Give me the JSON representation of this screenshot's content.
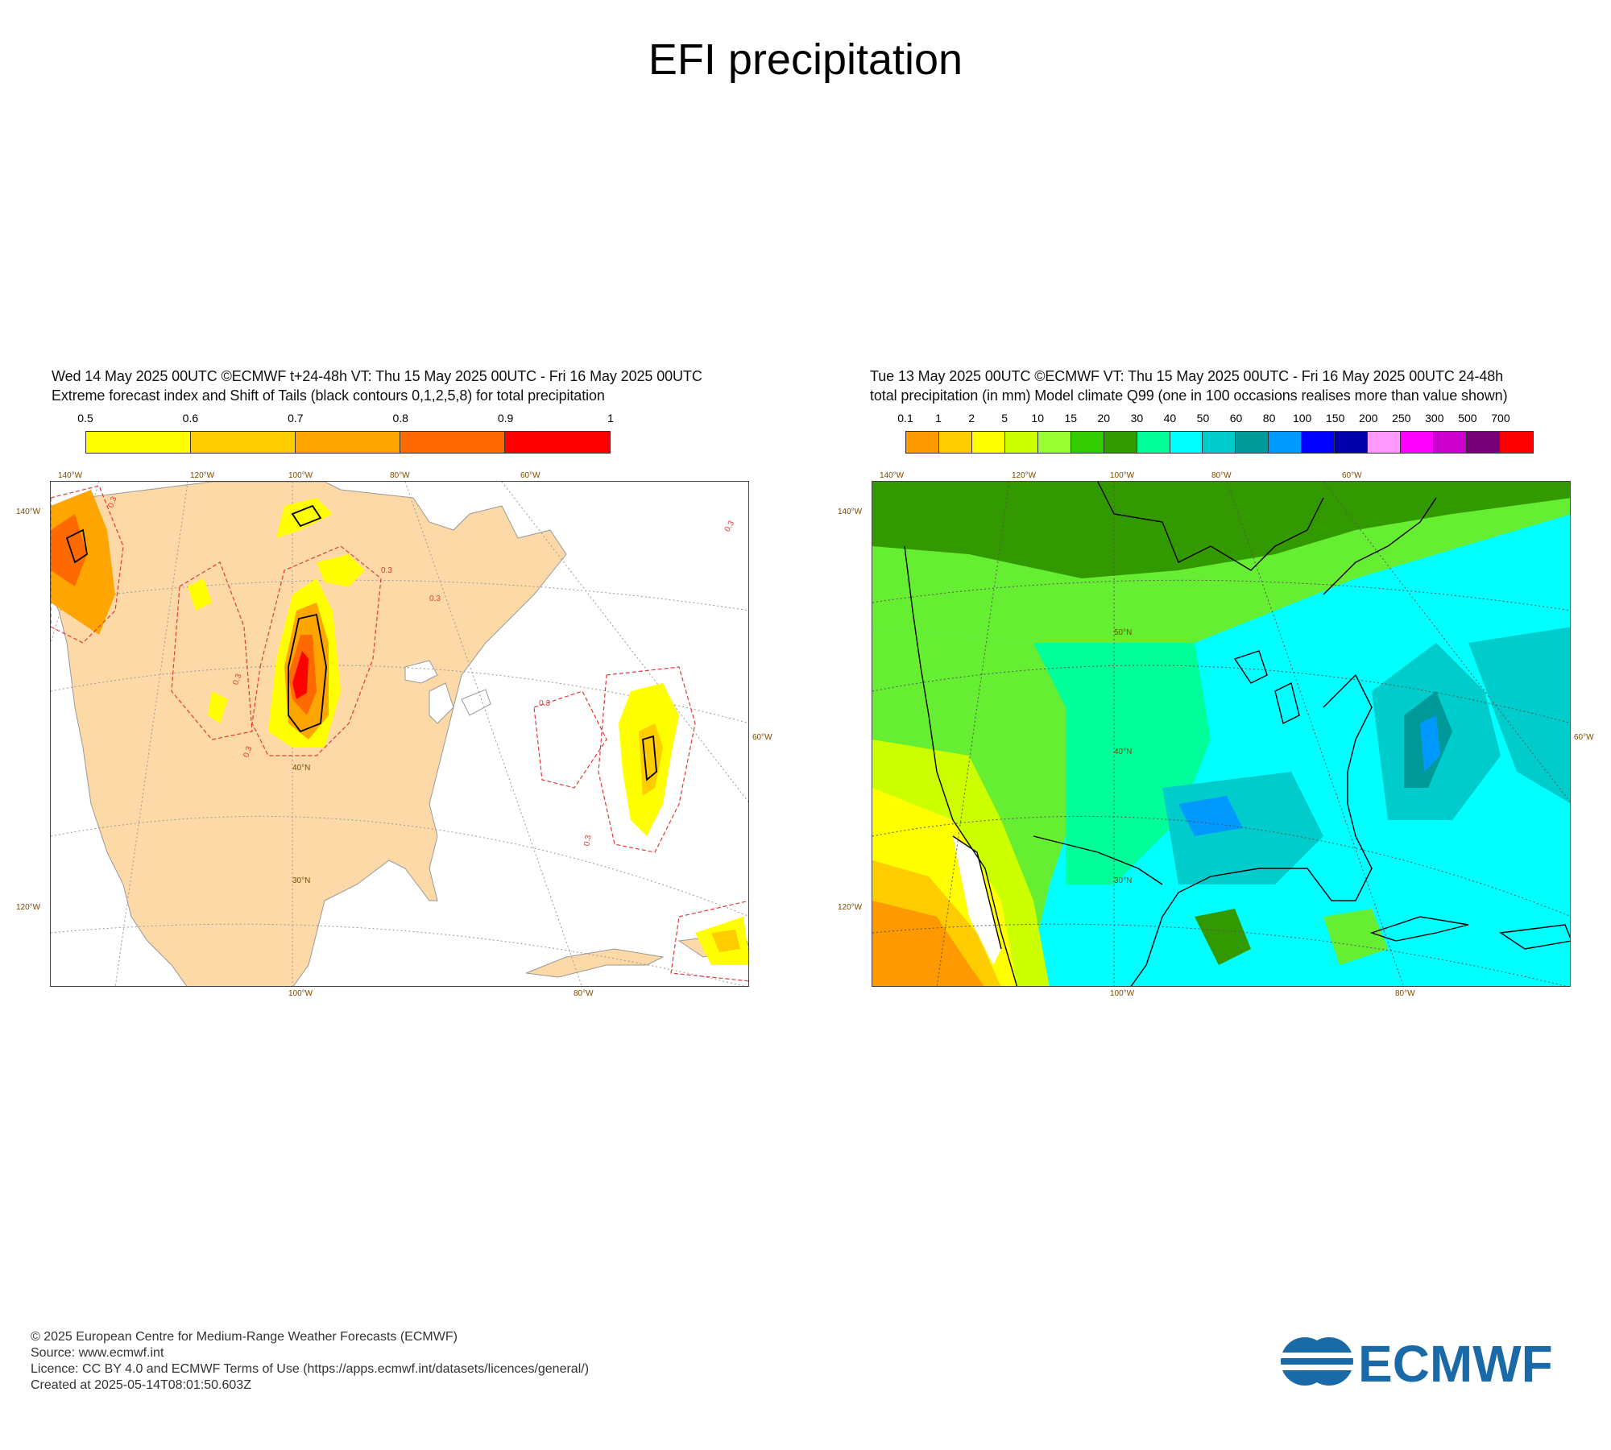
{
  "title": "EFI precipitation",
  "left_panel": {
    "header_line1": "Wed 14 May 2025 00UTC ©ECMWF t+24-48h  VT: Thu 15 May 2025 00UTC - Fri 16 May 2025 00UTC",
    "header_line2": "Extreme forecast index and Shift of Tails (black contours 0,1,2,5,8) for total precipitation",
    "colorbar": {
      "ticks": [
        "0.5",
        "0.6",
        "0.7",
        "0.8",
        "0.9",
        "1"
      ],
      "colors": [
        "#ffff00",
        "#ffcc00",
        "#ffa500",
        "#ff6a00",
        "#ff0000"
      ]
    },
    "contour_labels": [
      "0.3",
      "0.3",
      "0.3",
      "0.3",
      "0.3",
      "0.3",
      "0.3",
      "0.3"
    ],
    "lon_labels_top": [
      "140°W",
      "120°W",
      "100°W",
      "80°W",
      "60°W"
    ],
    "lon_labels_bottom": [
      "100°W",
      "80°W"
    ],
    "lat_labels_left": [
      "140°W",
      "120°W"
    ],
    "lat_labels_right": [
      "60°W"
    ],
    "lat_labels_inner": [
      "40°N",
      "30°N"
    ]
  },
  "right_panel": {
    "header_line1": "Tue 13 May 2025 00UTC ©ECMWF VT: Thu 15 May 2025 00UTC - Fri 16 May 2025 00UTC   24-48h",
    "header_line2": "total precipitation (in mm)  Model climate Q99 (one in 100 occasions realises more than value shown)",
    "colorbar": {
      "ticks": [
        "0.1",
        "1",
        "2",
        "5",
        "10",
        "15",
        "20",
        "30",
        "40",
        "50",
        "60",
        "80",
        "100",
        "150",
        "200",
        "250",
        "300",
        "500",
        "700"
      ],
      "colors": [
        "#ff9900",
        "#ffcc00",
        "#ffff00",
        "#ccff00",
        "#99ff33",
        "#33cc00",
        "#339900",
        "#00ff99",
        "#00ffff",
        "#00cccc",
        "#009999",
        "#0099ff",
        "#0000ff",
        "#0000aa",
        "#ff99ff",
        "#ff00ff",
        "#cc00cc",
        "#770077",
        "#ff0000"
      ]
    },
    "lon_labels_top": [
      "140°W",
      "120°W",
      "100°W",
      "80°W",
      "60°W"
    ],
    "lon_labels_bottom": [
      "100°W",
      "80°W"
    ],
    "lat_labels_left": [
      "140°W",
      "120°W"
    ],
    "lat_labels_right": [
      "60°W"
    ],
    "lat_labels_inner": [
      "50°N",
      "40°N",
      "30°N"
    ]
  },
  "footer": {
    "line1": "© 2025 European Centre for Medium-Range Weather Forecasts (ECMWF)",
    "line2": "Source: www.ecmwf.int",
    "line3": "Licence: CC BY 4.0 and ECMWF Terms of Use (https://apps.ecmwf.int/datasets/licences/general/)",
    "line4": "Created at 2025-05-14T08:01:50.603Z"
  },
  "logo": {
    "text": "ECMWF",
    "color": "#1a6aa8"
  }
}
